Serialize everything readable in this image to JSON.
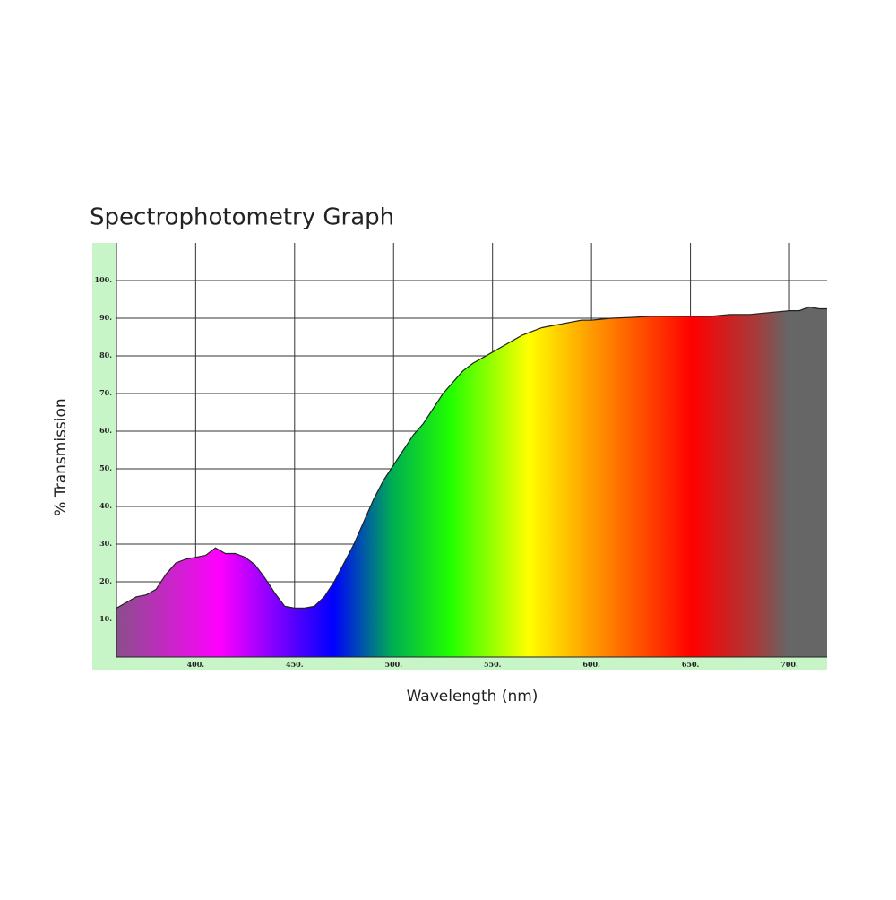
{
  "chart_data": {
    "type": "area",
    "title": "Spectrophotometry Graph",
    "x_label": "Wavelength (nm)",
    "y_label": "% Transmission",
    "x": [
      360,
      365,
      370,
      375,
      380,
      385,
      390,
      395,
      400,
      405,
      410,
      415,
      420,
      425,
      430,
      435,
      440,
      445,
      450,
      455,
      460,
      465,
      470,
      475,
      480,
      485,
      490,
      495,
      500,
      505,
      510,
      515,
      520,
      525,
      530,
      535,
      540,
      545,
      550,
      555,
      560,
      565,
      570,
      575,
      580,
      585,
      590,
      595,
      600,
      610,
      620,
      630,
      640,
      650,
      660,
      670,
      680,
      690,
      700,
      705,
      710,
      715,
      719
    ],
    "values": [
      13,
      14.5,
      16,
      16.5,
      18,
      22,
      25,
      26,
      26.5,
      27,
      29,
      27.5,
      27.5,
      26.5,
      24.5,
      21,
      17,
      13.5,
      13,
      13,
      13.5,
      16,
      20,
      25,
      30,
      36,
      42,
      47,
      51,
      55,
      59,
      62,
      66,
      70,
      73,
      76,
      78,
      79.5,
      81,
      82.5,
      84,
      85.5,
      86.5,
      87.5,
      88,
      88.5,
      89,
      89.5,
      89.5,
      90,
      90.2,
      90.5,
      90.5,
      90.5,
      90.5,
      91,
      91,
      91.5,
      92,
      92,
      93,
      92.5,
      92.5
    ],
    "xlim": [
      360,
      719
    ],
    "ylim": [
      0,
      110
    ],
    "xticks": [
      {
        "value": 400,
        "label": "400."
      },
      {
        "value": 450,
        "label": "450."
      },
      {
        "value": 500,
        "label": "500."
      },
      {
        "value": 550,
        "label": "550."
      },
      {
        "value": 600,
        "label": "600."
      },
      {
        "value": 650,
        "label": "650."
      },
      {
        "value": 700,
        "label": "700."
      }
    ],
    "yticks": [
      {
        "value": 10,
        "label": "10."
      },
      {
        "value": 20,
        "label": "20."
      },
      {
        "value": 30,
        "label": "30."
      },
      {
        "value": 40,
        "label": "40."
      },
      {
        "value": 50,
        "label": "50."
      },
      {
        "value": 60,
        "label": "60."
      },
      {
        "value": 70,
        "label": "70."
      },
      {
        "value": 80,
        "label": "80."
      },
      {
        "value": 90,
        "label": "90."
      },
      {
        "value": 100,
        "label": "100."
      }
    ],
    "grid": true,
    "line_color": "#222222"
  }
}
